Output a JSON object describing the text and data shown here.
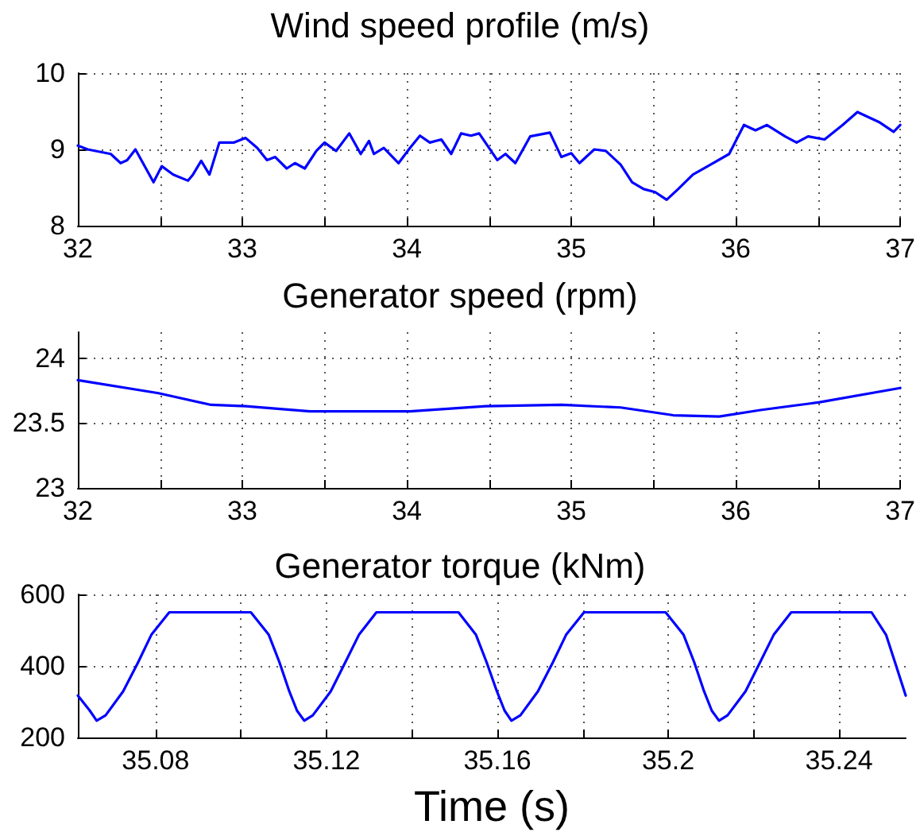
{
  "chart_data": [
    {
      "type": "line",
      "title": "Wind speed profile (m/s)",
      "grid": true,
      "line_style": "solid",
      "xlim": [
        32,
        37
      ],
      "xticks": [
        32,
        {
          "value": 32.5,
          "label": null
        },
        33,
        {
          "value": 33.5,
          "label": null
        },
        34,
        {
          "value": 34.5,
          "label": null
        },
        35,
        {
          "value": 35.5,
          "label": null
        },
        36,
        {
          "value": 36.5,
          "label": null
        },
        37
      ],
      "ylim": [
        8,
        10
      ],
      "yticks": [
        8,
        9,
        10
      ],
      "series": [
        {
          "color": "#0000ff",
          "x": [
            32.0,
            32.06,
            32.2,
            32.26,
            32.3,
            32.35,
            32.46,
            32.51,
            32.58,
            32.67,
            32.7,
            32.75,
            32.8,
            32.86,
            32.95,
            33.02,
            33.09,
            33.15,
            33.2,
            33.27,
            33.32,
            33.38,
            33.45,
            33.5,
            33.57,
            33.65,
            33.72,
            33.77,
            33.8,
            33.86,
            33.95,
            34.02,
            34.08,
            34.14,
            34.21,
            34.27,
            34.33,
            34.39,
            34.44,
            34.5,
            34.55,
            34.6,
            34.66,
            34.75,
            34.87,
            34.94,
            35.0,
            35.05,
            35.14,
            35.21,
            35.3,
            35.37,
            35.44,
            35.51,
            35.58,
            35.65,
            35.74,
            35.83,
            35.96,
            36.05,
            36.12,
            36.19,
            36.3,
            36.37,
            36.44,
            36.54,
            36.65,
            36.74,
            36.87,
            36.96,
            37.0
          ],
          "values": [
            9.05,
            9.0,
            8.94,
            8.82,
            8.86,
            9.0,
            8.57,
            8.78,
            8.67,
            8.59,
            8.67,
            8.85,
            8.67,
            9.09,
            9.09,
            9.15,
            9.02,
            8.86,
            8.9,
            8.75,
            8.82,
            8.75,
            8.98,
            9.09,
            8.98,
            9.21,
            8.94,
            9.11,
            8.94,
            9.02,
            8.82,
            9.02,
            9.18,
            9.09,
            9.13,
            8.94,
            9.21,
            9.18,
            9.21,
            9.02,
            8.86,
            8.94,
            8.82,
            9.17,
            9.22,
            8.9,
            8.95,
            8.82,
            9.0,
            8.98,
            8.8,
            8.57,
            8.48,
            8.44,
            8.34,
            8.48,
            8.67,
            8.78,
            8.94,
            9.32,
            9.25,
            9.32,
            9.17,
            9.09,
            9.17,
            9.13,
            9.32,
            9.49,
            9.36,
            9.23,
            9.32
          ]
        }
      ]
    },
    {
      "type": "line",
      "title": "Generator speed (rpm)",
      "grid": true,
      "line_style": "solid",
      "xlim": [
        32,
        37
      ],
      "xticks": [
        32,
        {
          "value": 32.5,
          "label": null
        },
        33,
        {
          "value": 33.5,
          "label": null
        },
        34,
        {
          "value": 34.5,
          "label": null
        },
        35,
        {
          "value": 35.5,
          "label": null
        },
        36,
        {
          "value": 36.5,
          "label": null
        },
        37
      ],
      "ylim": [
        23,
        24.2
      ],
      "yticks": [
        23,
        23.5,
        24
      ],
      "series": [
        {
          "color": "#0000ff",
          "x": [
            32,
            32.49,
            32.81,
            33.02,
            33.41,
            34.02,
            34.48,
            34.94,
            35.3,
            35.62,
            35.9,
            36.15,
            36.51,
            37
          ],
          "values": [
            23.83,
            23.73,
            23.64,
            23.63,
            23.59,
            23.59,
            23.63,
            23.64,
            23.62,
            23.56,
            23.55,
            23.6,
            23.66,
            23.77
          ]
        }
      ]
    },
    {
      "type": "line",
      "title": "Generator torque (kNm)",
      "xlabel": "Time (s)",
      "grid": true,
      "line_style": "solid",
      "xlim": [
        35.0618,
        35.2556
      ],
      "xticks": [
        35.08,
        {
          "value": 35.1,
          "label": null
        },
        35.12,
        {
          "value": 35.14,
          "label": null
        },
        35.16,
        {
          "value": 35.18,
          "label": null
        },
        35.2,
        {
          "value": 35.22,
          "label": null
        },
        35.24
      ],
      "ylim": [
        200,
        600
      ],
      "yticks": [
        200,
        400,
        600
      ],
      "series": [
        {
          "color": "#0000ff",
          "x": [
            35.0618,
            35.0646,
            35.0662,
            35.0683,
            35.0724,
            35.0759,
            35.079,
            35.0832,
            35.1023,
            35.1065,
            35.109,
            35.1113,
            35.1131,
            35.1148,
            35.1168,
            35.121,
            35.1244,
            35.1276,
            35.1317,
            35.1509,
            35.155,
            35.1575,
            35.1599,
            35.1617,
            35.1633,
            35.1654,
            35.1695,
            35.173,
            35.1761,
            35.1803,
            35.1994,
            35.2036,
            35.2061,
            35.2084,
            35.2102,
            35.2119,
            35.2139,
            35.2181,
            35.2215,
            35.2247,
            35.2288,
            35.2476,
            35.251,
            35.2531,
            35.2556
          ],
          "values": [
            317,
            275,
            247,
            262,
            329,
            410,
            487,
            550,
            550,
            487,
            410,
            329,
            275,
            247,
            262,
            329,
            410,
            487,
            550,
            550,
            487,
            410,
            329,
            275,
            247,
            262,
            329,
            410,
            487,
            550,
            550,
            487,
            410,
            329,
            275,
            247,
            262,
            329,
            410,
            487,
            550,
            550,
            487,
            410,
            317
          ]
        }
      ]
    }
  ]
}
